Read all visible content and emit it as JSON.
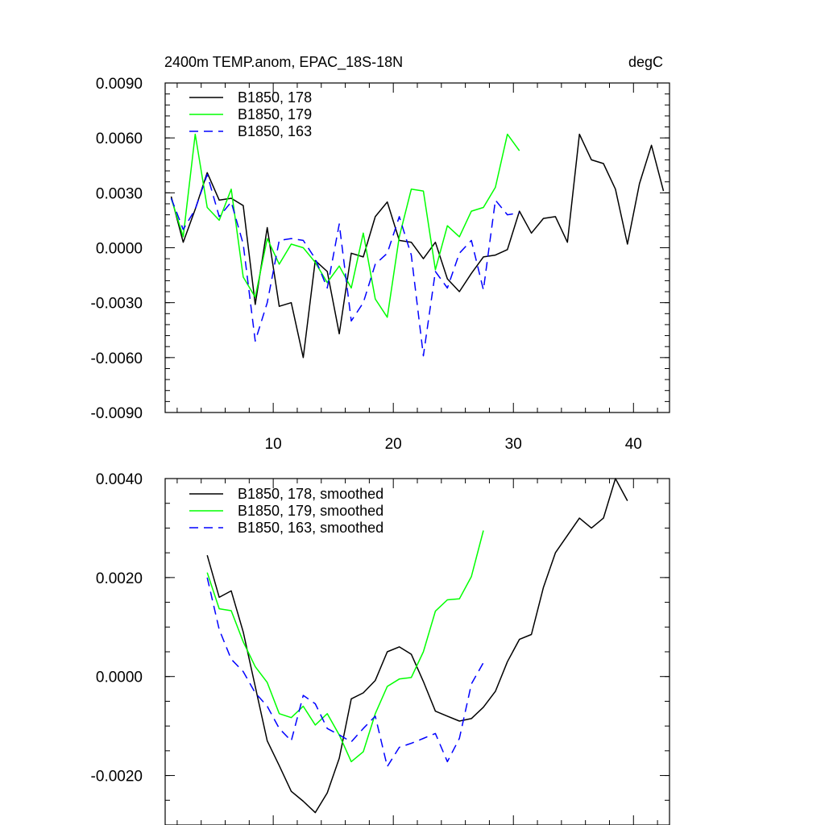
{
  "chart_data": [
    {
      "type": "line",
      "title": "2400m TEMP.anom, EPAC_18S-18N",
      "units": "degC",
      "xlim": [
        1,
        43
      ],
      "ylim": [
        -0.009,
        0.009
      ],
      "x_ticks": [
        10,
        20,
        30,
        40
      ],
      "x_tick_labels": [
        "10",
        "20",
        "30",
        "40"
      ],
      "y_ticks": [
        -0.009,
        -0.006,
        -0.003,
        0.0,
        0.003,
        0.006,
        0.009
      ],
      "y_tick_labels": [
        "-0.0090",
        "-0.0060",
        "-0.0030",
        "0.0000",
        "0.0030",
        "0.0060",
        "0.0090"
      ],
      "legend_position": "top-left",
      "grid": false,
      "series": [
        {
          "name": "B1850, 178",
          "color": "#000000",
          "dash": "solid",
          "x": [
            1.5,
            2.5,
            3.5,
            4.5,
            5.5,
            6.5,
            7.5,
            8.5,
            9.5,
            10.5,
            11.5,
            12.5,
            13.5,
            14.5,
            15.5,
            16.5,
            17.5,
            18.5,
            19.5,
            20.5,
            21.5,
            22.5,
            23.5,
            24.5,
            25.5,
            26.5,
            27.5,
            28.5,
            29.5,
            30.5,
            31.5,
            32.5,
            33.5,
            34.5,
            35.5,
            36.5,
            37.5,
            38.5,
            39.5,
            40.5,
            41.5,
            42.5
          ],
          "y": [
            0.0028,
            0.0003,
            0.0021,
            0.0041,
            0.0026,
            0.0027,
            0.0023,
            -0.0031,
            0.0011,
            -0.0032,
            -0.003,
            -0.006,
            -0.0007,
            -0.0013,
            -0.0047,
            -0.0003,
            -0.0005,
            0.0017,
            0.0025,
            0.0004,
            0.0003,
            -0.0006,
            0.0003,
            -0.0017,
            -0.0024,
            -0.0014,
            -0.0005,
            -0.0004,
            -0.0001,
            0.002,
            0.0008,
            0.0016,
            0.0017,
            0.0003,
            0.0062,
            0.0048,
            0.0046,
            0.0032,
            0.0002,
            0.0035,
            0.0056,
            0.0031
          ]
        },
        {
          "name": "B1850, 179",
          "color": "#00ff00",
          "dash": "solid",
          "x": [
            1.5,
            2.5,
            3.5,
            4.5,
            5.5,
            6.5,
            7.5,
            8.5,
            9.5,
            10.5,
            11.5,
            12.5,
            13.5,
            14.5,
            15.5,
            16.5,
            17.5,
            18.5,
            19.5,
            20.5,
            21.5,
            22.5,
            23.5,
            24.5,
            25.5,
            26.5,
            27.5,
            28.5,
            29.5,
            30.5
          ],
          "y": [
            0.0027,
            0.0006,
            0.0062,
            0.0022,
            0.0015,
            0.0032,
            -0.0016,
            -0.0027,
            0.0005,
            -0.0009,
            0.0002,
            0.0,
            -0.0008,
            -0.0019,
            -0.001,
            -0.0022,
            0.0008,
            -0.0028,
            -0.0038,
            0.0006,
            0.0032,
            0.0031,
            -0.0012,
            0.0012,
            0.0006,
            0.002,
            0.0022,
            0.0033,
            0.0062,
            0.0053
          ]
        },
        {
          "name": "B1850, 163",
          "color": "#0000ff",
          "dash": "dashed",
          "x": [
            1.5,
            2.5,
            3.5,
            4.5,
            5.5,
            6.5,
            7.5,
            8.5,
            9.5,
            10.5,
            11.5,
            12.5,
            13.5,
            14.5,
            15.5,
            16.5,
            17.5,
            18.5,
            19.5,
            20.5,
            21.5,
            22.5,
            23.5,
            24.5,
            25.5,
            26.5,
            27.5,
            28.5,
            29.5,
            30.5
          ],
          "y": [
            0.0027,
            0.001,
            0.0021,
            0.004,
            0.0017,
            0.0025,
            0.0002,
            -0.0051,
            -0.003,
            0.0004,
            0.0005,
            0.0004,
            -0.0006,
            -0.0022,
            0.0013,
            -0.004,
            -0.003,
            -0.0009,
            -0.0003,
            0.0017,
            -0.0004,
            -0.0059,
            -0.0013,
            -0.0022,
            -0.0003,
            0.0004,
            -0.0023,
            0.0026,
            0.0018,
            0.0019
          ]
        }
      ]
    },
    {
      "type": "line",
      "xlim": [
        1,
        43
      ],
      "ylim": [
        -0.003,
        0.004
      ],
      "x_ticks": [
        10,
        20,
        30,
        40
      ],
      "y_ticks": [
        -0.002,
        0.0,
        0.002,
        0.004
      ],
      "y_tick_labels": [
        "-0.0020",
        "0.0000",
        "0.0020",
        "0.0040"
      ],
      "legend_position": "top-left",
      "grid": false,
      "series": [
        {
          "name": "B1850, 178, smoothed",
          "color": "#000000",
          "dash": "solid",
          "x": [
            4.5,
            5.5,
            6.5,
            7.5,
            8.5,
            9.5,
            10.5,
            11.5,
            12.5,
            13.5,
            14.5,
            15.5,
            16.5,
            17.5,
            18.5,
            19.5,
            20.5,
            21.5,
            22.5,
            23.5,
            24.5,
            25.5,
            26.5,
            27.5,
            28.5,
            29.5,
            30.5,
            31.5,
            32.5,
            33.5,
            34.5,
            35.5,
            36.5,
            37.5,
            38.5,
            39.5
          ],
          "y": [
            0.00245,
            0.0016,
            0.00173,
            0.0009,
            -0.0002,
            -0.0013,
            -0.0018,
            -0.00232,
            -0.00252,
            -0.00275,
            -0.00235,
            -0.00165,
            -0.00045,
            -0.00033,
            -8e-05,
            0.0005,
            0.0006,
            0.00045,
            -0.0001,
            -0.0007,
            -0.0008,
            -0.0009,
            -0.00085,
            -0.00062,
            -0.0003,
            0.0003,
            0.00075,
            0.00085,
            0.0018,
            0.0025,
            0.00285,
            0.0032,
            0.003,
            0.0032,
            0.004,
            0.00355
          ]
        },
        {
          "name": "B1850, 179, smoothed",
          "color": "#00ff00",
          "dash": "solid",
          "x": [
            4.5,
            5.5,
            6.5,
            7.5,
            8.5,
            9.5,
            10.5,
            11.5,
            12.5,
            13.5,
            14.5,
            15.5,
            16.5,
            17.5,
            18.5,
            19.5,
            20.5,
            21.5,
            22.5,
            23.5,
            24.5,
            25.5,
            26.5,
            27.5
          ],
          "y": [
            0.0021,
            0.00137,
            0.00133,
            0.0007,
            0.0002,
            -0.00012,
            -0.00075,
            -0.00083,
            -0.0006,
            -0.00098,
            -0.00075,
            -0.00118,
            -0.00172,
            -0.00152,
            -0.00075,
            -0.0002,
            -5e-05,
            -2e-05,
            0.0005,
            0.00132,
            0.00155,
            0.00157,
            0.00202,
            0.00295
          ]
        },
        {
          "name": "B1850, 163, smoothed",
          "color": "#0000ff",
          "dash": "dashed",
          "x": [
            4.5,
            5.5,
            6.5,
            7.5,
            8.5,
            9.5,
            10.5,
            11.5,
            12.5,
            13.5,
            14.5,
            15.5,
            16.5,
            17.5,
            18.5,
            19.5,
            20.5,
            21.5,
            22.5,
            23.5,
            24.5,
            25.5,
            26.5,
            27.5
          ],
          "y": [
            0.002,
            0.00095,
            0.00035,
            0.0001,
            -0.00033,
            -0.0006,
            -0.00105,
            -0.0013,
            -0.00038,
            -0.00055,
            -0.00105,
            -0.00118,
            -0.00132,
            -0.00105,
            -0.0008,
            -0.00182,
            -0.00143,
            -0.00135,
            -0.00125,
            -0.00115,
            -0.00172,
            -0.00125,
            -0.00015,
            0.00028
          ]
        }
      ]
    }
  ]
}
